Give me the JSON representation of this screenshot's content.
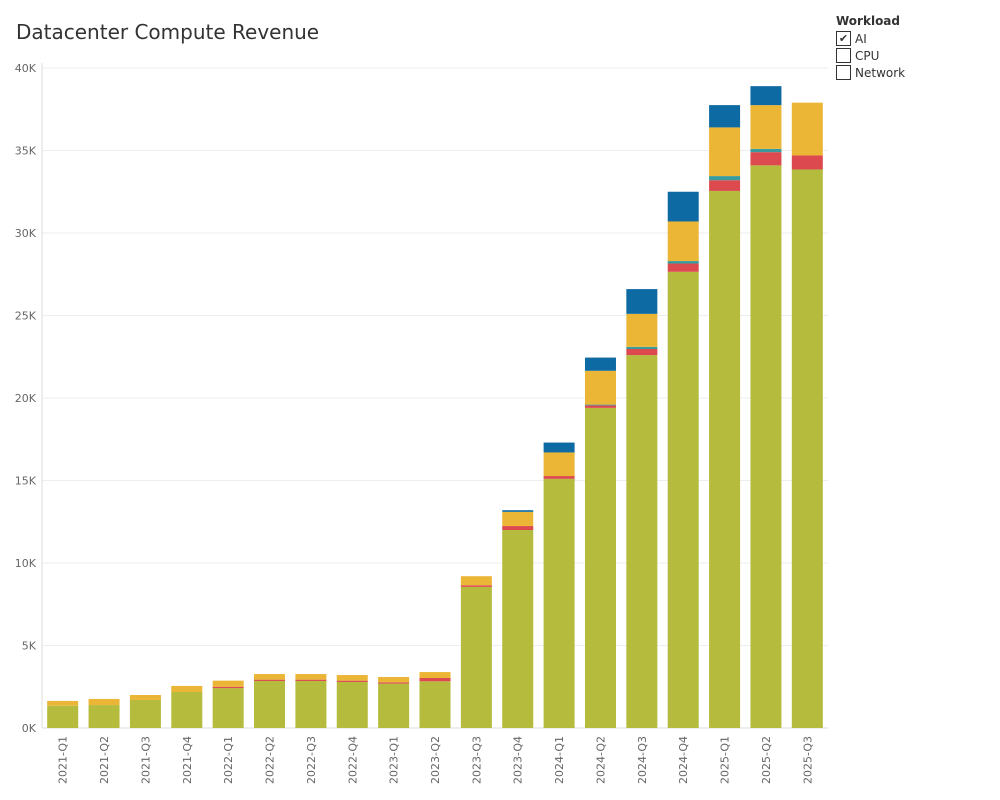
{
  "chart_data": {
    "type": "bar",
    "stacked": true,
    "title": "Datacenter Compute Revenue",
    "xlabel": "",
    "ylabel": "",
    "ylim": [
      0,
      40000
    ],
    "yticks": [
      0,
      5000,
      10000,
      15000,
      20000,
      25000,
      30000,
      35000,
      40000
    ],
    "ytick_labels": [
      "0K",
      "5K",
      "10K",
      "15K",
      "20K",
      "25K",
      "30K",
      "35K",
      "40K"
    ],
    "grid": true,
    "categories": [
      "2021-Q1",
      "2021-Q2",
      "2021-Q3",
      "2021-Q4",
      "2022-Q1",
      "2022-Q2",
      "2022-Q3",
      "2022-Q4",
      "2023-Q1",
      "2023-Q2",
      "2023-Q3",
      "2023-Q4",
      "2024-Q1",
      "2024-Q2",
      "2024-Q3",
      "2024-Q4",
      "2025-Q1",
      "2025-Q2",
      "2025-Q3"
    ],
    "series": [
      {
        "color": "#b5bb3c",
        "values": [
          1350,
          1390,
          1700,
          2180,
          2420,
          2850,
          2850,
          2790,
          2690,
          2830,
          8550,
          12000,
          15100,
          19400,
          22600,
          27650,
          32550,
          34100,
          33850
        ]
      },
      {
        "color": "#dc4a4f",
        "values": [
          0,
          0,
          0,
          0,
          80,
          80,
          80,
          80,
          80,
          200,
          100,
          240,
          170,
          150,
          370,
          500,
          650,
          800,
          850
        ]
      },
      {
        "color": "#3a9b9f",
        "values": [
          0,
          0,
          0,
          0,
          0,
          0,
          0,
          0,
          0,
          0,
          0,
          0,
          0,
          50,
          130,
          150,
          250,
          200,
          0
        ]
      },
      {
        "color": "#ebb536",
        "values": [
          290,
          370,
          300,
          370,
          370,
          340,
          340,
          340,
          320,
          360,
          550,
          860,
          1430,
          2050,
          2000,
          2400,
          2950,
          2650,
          3200
        ]
      },
      {
        "color": "#0e6aa3",
        "values": [
          0,
          0,
          0,
          0,
          0,
          0,
          0,
          0,
          0,
          0,
          0,
          100,
          600,
          800,
          1500,
          1800,
          1350,
          1150,
          0
        ]
      }
    ]
  },
  "legend": {
    "title": "Workload",
    "items": [
      {
        "label": "AI",
        "checked": true,
        "mark": "✔"
      },
      {
        "label": "CPU",
        "checked": false,
        "mark": ""
      },
      {
        "label": "Network",
        "checked": false,
        "mark": ""
      }
    ]
  }
}
